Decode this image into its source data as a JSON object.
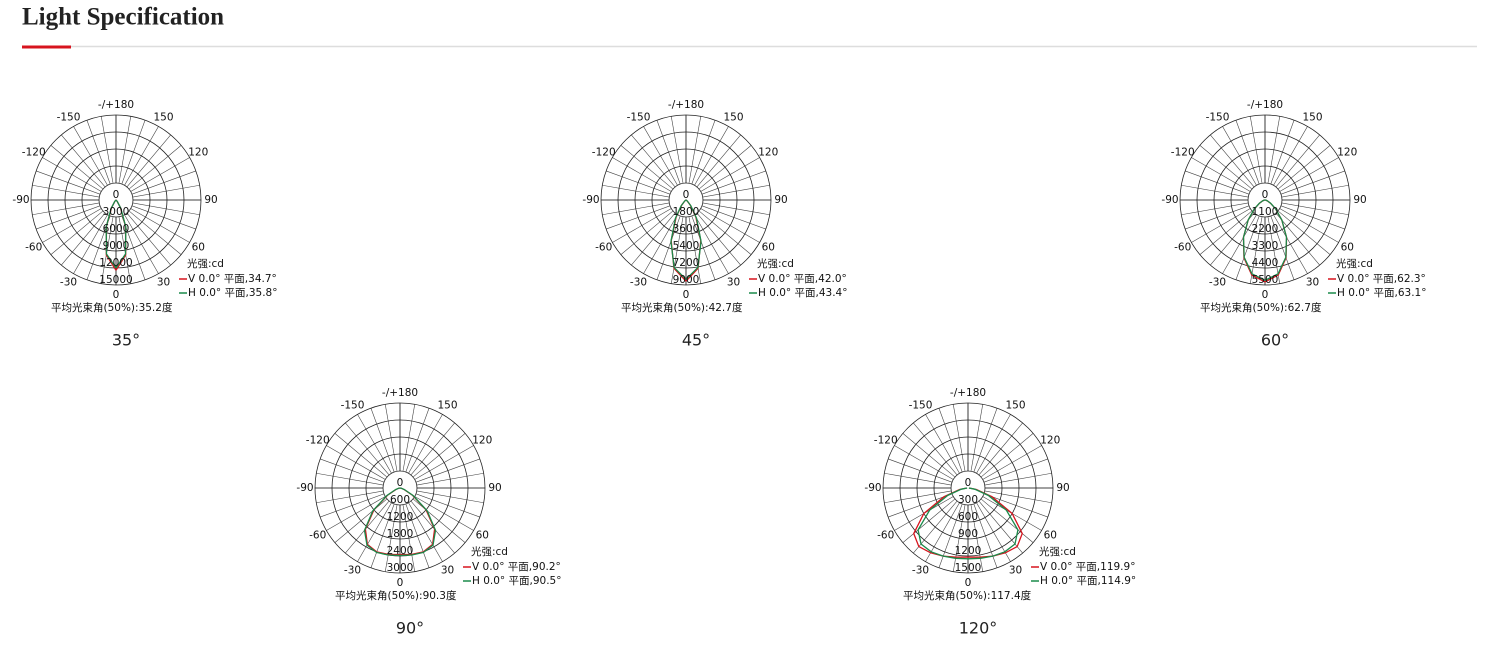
{
  "header": {
    "title": "Light Specification"
  },
  "chart_data": [
    {
      "type": "polar",
      "caption": "35°",
      "unit_label": "光强:cd",
      "average_beam": "平均光束角(50%):35.2度",
      "angle_ticks": [
        {
          "value": 180,
          "label": "-/+180"
        },
        -150,
        150,
        -120,
        120,
        -90,
        90,
        -60,
        60,
        -30,
        30,
        0
      ],
      "rlim": [
        0,
        15000
      ],
      "rticks": [
        0,
        3000,
        6000,
        9000,
        12000,
        15000
      ],
      "angles": [
        0,
        10,
        20,
        30,
        40,
        50,
        60,
        70,
        80,
        90
      ],
      "series": [
        {
          "name": "V 0.0° 平面,34.7°",
          "color": "#d7141e",
          "values": [
            12400,
            9850,
            4930,
            1560,
            310,
            30,
            0,
            0,
            0,
            0
          ]
        },
        {
          "name": "H 0.0° 平面,35.8°",
          "color": "#1a8a4a",
          "values": [
            12000,
            9670,
            5050,
            1710,
            380,
            40,
            0,
            0,
            0,
            0
          ]
        }
      ]
    },
    {
      "type": "polar",
      "caption": "45°",
      "unit_label": "光强:cd",
      "average_beam": "平均光束角(50%):42.7度",
      "angle_ticks": [
        {
          "value": 180,
          "label": "-/+180"
        },
        -150,
        150,
        -120,
        120,
        -90,
        90,
        -60,
        60,
        -30,
        30,
        0
      ],
      "rlim": [
        0,
        9000
      ],
      "rticks": [
        0,
        1800,
        3600,
        5400,
        7200,
        9000
      ],
      "angles": [
        0,
        10,
        20,
        30,
        40,
        50,
        60,
        70,
        80,
        90
      ],
      "series": [
        {
          "name": "V 0.0° 平面,42.0°",
          "color": "#d7141e",
          "values": [
            8600,
            7350,
            4580,
            2090,
            690,
            170,
            30,
            0,
            0,
            0
          ]
        },
        {
          "name": "H 0.0° 平面,43.4°",
          "color": "#1a8a4a",
          "values": [
            8400,
            7250,
            4660,
            2230,
            800,
            210,
            40,
            0,
            0,
            0
          ]
        }
      ]
    },
    {
      "type": "polar",
      "caption": "60°",
      "unit_label": "光强:cd",
      "average_beam": "平均光束角(50%):62.7度",
      "angle_ticks": [
        {
          "value": 180,
          "label": "-/+180"
        },
        -150,
        150,
        -120,
        120,
        -90,
        90,
        -60,
        60,
        -30,
        30,
        0
      ],
      "rlim": [
        0,
        5500
      ],
      "rticks": [
        0,
        1100,
        2200,
        3300,
        4400,
        5500
      ],
      "angles": [
        0,
        10,
        20,
        30,
        40,
        50,
        60,
        70,
        80,
        90
      ],
      "series": [
        {
          "name": "V 0.0° 平面,62.3°",
          "color": "#d7141e",
          "values": [
            5300,
            4930,
            3980,
            2790,
            1690,
            890,
            400,
            160,
            50,
            0
          ]
        },
        {
          "name": "H 0.0° 平面,63.1°",
          "color": "#1a8a4a",
          "values": [
            5200,
            4850,
            3940,
            2780,
            1700,
            910,
            430,
            170,
            60,
            0
          ]
        }
      ]
    },
    {
      "type": "polar",
      "caption": "90°",
      "unit_label": "光强:cd",
      "average_beam": "平均光束角(50%):90.3度",
      "angle_ticks": [
        {
          "value": 180,
          "label": "-/+180"
        },
        -150,
        150,
        -120,
        120,
        -90,
        90,
        -60,
        60,
        -30,
        30,
        0
      ],
      "rlim": [
        0,
        3000
      ],
      "rticks": [
        0,
        600,
        1200,
        1800,
        2400,
        3000
      ],
      "angles": [
        0,
        10,
        20,
        30,
        40,
        50,
        60,
        70,
        80,
        90
      ],
      "series": [
        {
          "name": "V 0.0° 平面,90.2°",
          "color": "#d7141e",
          "values": [
            2350,
            2380,
            2400,
            2300,
            1900,
            1200,
            500,
            150,
            40,
            0
          ]
        },
        {
          "name": "H 0.0° 平面,90.5°",
          "color": "#1a8a4a",
          "values": [
            2380,
            2400,
            2420,
            2330,
            1950,
            1250,
            540,
            170,
            50,
            0
          ]
        }
      ]
    },
    {
      "type": "polar",
      "caption": "120°",
      "unit_label": "光强:cd",
      "average_beam": "平均光束角(50%):117.4度",
      "angle_ticks": [
        {
          "value": 180,
          "label": "-/+180"
        },
        -150,
        150,
        -120,
        120,
        -90,
        90,
        -60,
        60,
        -30,
        30,
        0
      ],
      "rlim": [
        0,
        1500
      ],
      "rticks": [
        0,
        300,
        600,
        900,
        1200,
        1500
      ],
      "angles": [
        0,
        10,
        20,
        30,
        40,
        50,
        60,
        70,
        80,
        90
      ],
      "series": [
        {
          "name": "V 0.0° 平面,119.9°",
          "color": "#d7141e",
          "values": [
            1220,
            1240,
            1280,
            1320,
            1350,
            1250,
            900,
            450,
            150,
            20
          ]
        },
        {
          "name": "H 0.0° 平面,114.9°",
          "color": "#1a8a4a",
          "values": [
            1250,
            1260,
            1280,
            1300,
            1290,
            1150,
            780,
            380,
            120,
            15
          ]
        }
      ]
    }
  ]
}
